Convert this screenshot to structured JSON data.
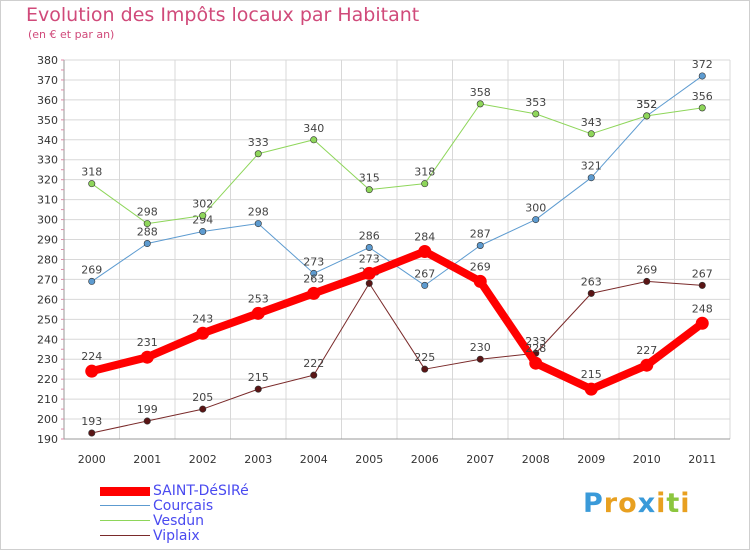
{
  "chart_data": {
    "type": "line",
    "title": "Evolution des Impôts locaux par Habitant",
    "subtitle": "(en € et par an)",
    "x": [
      "2000",
      "2001",
      "2002",
      "2003",
      "2004",
      "2005",
      "2006",
      "2007",
      "2008",
      "2009",
      "2010",
      "2011"
    ],
    "ylim": [
      190,
      380
    ],
    "yticks": [
      190,
      200,
      210,
      220,
      230,
      240,
      250,
      260,
      270,
      280,
      290,
      300,
      310,
      320,
      330,
      340,
      350,
      360,
      370,
      380
    ],
    "grid": true,
    "legend_position": "bottom-left",
    "series": [
      {
        "name": "SAINT-DéSIRé",
        "color": "#ff0000",
        "values": [
          224,
          231,
          243,
          253,
          263,
          273,
          284,
          269,
          228,
          215,
          227,
          248
        ]
      },
      {
        "name": "Courçais",
        "color": "#5d9bd0",
        "values": [
          269,
          288,
          294,
          298,
          273,
          286,
          267,
          287,
          300,
          321,
          352,
          372
        ]
      },
      {
        "name": "Vesdun",
        "color": "#8ed65a",
        "values": [
          318,
          298,
          302,
          333,
          340,
          315,
          318,
          358,
          353,
          343,
          352,
          356
        ]
      },
      {
        "name": "Viplaix",
        "color": "#7a2a2a",
        "values": [
          193,
          199,
          205,
          215,
          222,
          268,
          225,
          230,
          233,
          263,
          269,
          267
        ]
      }
    ]
  },
  "brand": {
    "letters": [
      "P",
      "r",
      "o",
      "x",
      "i",
      "t",
      "i"
    ],
    "colors": [
      "#3a9ad9",
      "#e8a020",
      "#e8a020",
      "#3a9ad9",
      "#e8a020",
      "#8cc63f",
      "#e8a020"
    ]
  }
}
